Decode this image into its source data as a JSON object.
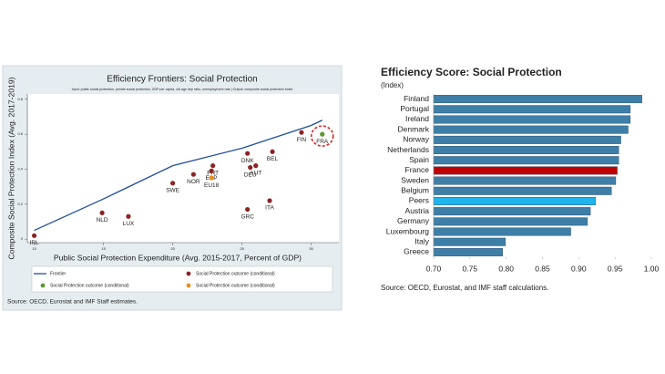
{
  "chart_data": [
    {
      "type": "scatter",
      "title": "Efficiency Frontiers: Social Protection",
      "subtitle": "Input: public social protection, private social protection, GDP per capita, old age dep ratio, unemployment rate | Output: composite social protection index",
      "x_label": "Public Social Protection Expenditure (Avg. 2015-2017, Percent of GDP)",
      "y_label": "Composite Social Protection Index (Avg. 2017-2019)",
      "xlim": [
        9.5,
        32
      ],
      "ylim": [
        -0.02,
        0.83
      ],
      "xticks": [
        10,
        15,
        20,
        25,
        30
      ],
      "yticks": [
        0,
        0.2,
        0.4,
        0.6,
        0.8
      ],
      "series": [
        {
          "name": "Frontier",
          "mode": "line",
          "color": "#1f4e9a",
          "x": [
            10,
            15,
            20,
            25,
            30,
            30.8
          ],
          "values": [
            0.05,
            0.23,
            0.42,
            0.52,
            0.65,
            0.68
          ]
        },
        {
          "name": "Social Protection outcome (conditional)",
          "mode": "points",
          "color": "#8b2323",
          "labels": [
            "IRL",
            "NLD",
            "LUX",
            "SWE",
            "NOR",
            "PRT",
            "ESP",
            "DNK",
            "AUT",
            "DEU",
            "BEL",
            "FIN",
            "GRC",
            "ITA"
          ],
          "x": [
            10,
            14.9,
            16.8,
            20,
            21.5,
            22.9,
            22.8,
            25.4,
            26,
            25.6,
            27.2,
            29.3,
            25.4,
            27
          ],
          "values": [
            0.02,
            0.15,
            0.13,
            0.32,
            0.37,
            0.42,
            0.39,
            0.49,
            0.42,
            0.41,
            0.5,
            0.61,
            0.17,
            0.22
          ]
        },
        {
          "name": "Social Protection outcome (conditional)",
          "mode": "points",
          "color": "#5a9a32",
          "highlight": true,
          "labels": [
            "FRA"
          ],
          "x": [
            30.8
          ],
          "values": [
            0.6
          ]
        },
        {
          "name": "Social Protection outcome (conditional)",
          "mode": "points",
          "color": "#e8901c",
          "labels": [
            "EU18"
          ],
          "x": [
            22.8
          ],
          "values": [
            0.35
          ]
        }
      ],
      "source": "Source: OECD, Eurostat and IMF Staff estimates."
    },
    {
      "type": "hbar",
      "title": "Efficiency Score: Social Protection",
      "subtitle": "(Index)",
      "categories": [
        "Finland",
        "Portugal",
        "Ireland",
        "Denmark",
        "Norway",
        "Netherlands",
        "Spain",
        "France",
        "Sweden",
        "Belgium",
        "Peers",
        "Austria",
        "Germany",
        "Luxembourg",
        "Italy",
        "Greece"
      ],
      "values": [
        0.987,
        0.971,
        0.971,
        0.968,
        0.958,
        0.955,
        0.955,
        0.953,
        0.951,
        0.945,
        0.923,
        0.916,
        0.912,
        0.889,
        0.799,
        0.795
      ],
      "colors": [
        "#3e7fa8",
        "#3e7fa8",
        "#3e7fa8",
        "#3e7fa8",
        "#3e7fa8",
        "#3e7fa8",
        "#3e7fa8",
        "#c00000",
        "#3e7fa8",
        "#3e7fa8",
        "#1fb4ee",
        "#3e7fa8",
        "#3e7fa8",
        "#3e7fa8",
        "#3e7fa8",
        "#3e7fa8"
      ],
      "xlim": [
        0.7,
        1.0
      ],
      "xticks": [
        {
          "value": 0.7,
          "label": "0.70"
        },
        0.75,
        {
          "value": 0.8,
          "label": "0.80"
        },
        0.85,
        {
          "value": 0.9,
          "label": "0.90"
        },
        0.95,
        {
          "value": 1.0,
          "label": "1.00"
        }
      ],
      "source": "Source: OECD, Eurostat, and IMF staff calculations."
    }
  ]
}
